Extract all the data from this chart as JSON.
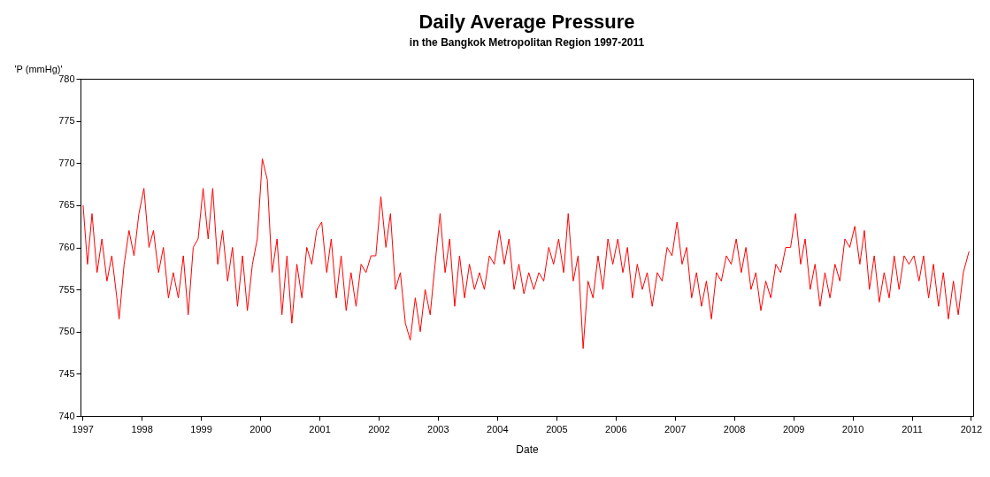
{
  "chart_data": {
    "type": "line",
    "title": "Daily Average Pressure",
    "subtitle": "in the Bangkok Metropolitan Region 1997-2011",
    "xlabel": "Date",
    "ylabel": "'P (mmHg)'",
    "xlim": [
      "1996-12-20",
      "2012-01-15"
    ],
    "xticks": [
      "1997",
      "1998",
      "1999",
      "2000",
      "2001",
      "2002",
      "2003",
      "2004",
      "2005",
      "2006",
      "2007",
      "2008",
      "2009",
      "2010",
      "2011",
      "2012"
    ],
    "ylim": [
      740,
      780
    ],
    "yticks": [
      740,
      745,
      750,
      755,
      760,
      765,
      770,
      775,
      780
    ],
    "grid": false,
    "x": [
      "1997-01-05",
      "1997-02-01",
      "1997-03-01",
      "1997-04-01",
      "1997-05-01",
      "1997-06-01",
      "1997-07-01",
      "1997-08-01",
      "1997-08-15",
      "1997-09-15",
      "1997-10-15",
      "1997-11-15",
      "1997-12-15",
      "1998-01-15",
      "1998-02-15",
      "1998-03-15",
      "1998-04-15",
      "1998-05-15",
      "1998-06-15",
      "1998-07-15",
      "1998-08-15",
      "1998-09-15",
      "1998-10-15",
      "1998-11-15",
      "1998-12-15",
      "1999-01-15",
      "1999-02-15",
      "1999-03-15",
      "1999-04-15",
      "1999-05-15",
      "1999-06-15",
      "1999-07-15",
      "1999-08-15",
      "1999-09-15",
      "1999-10-15",
      "1999-11-15",
      "1999-12-15",
      "2000-01-15",
      "2000-02-15",
      "2000-03-15",
      "2000-04-15",
      "2000-05-15",
      "2000-06-15",
      "2000-07-15",
      "2000-08-15",
      "2000-09-15",
      "2000-10-15",
      "2000-11-15",
      "2000-12-15",
      "2001-01-15",
      "2001-02-15",
      "2001-03-15",
      "2001-04-15",
      "2001-05-15",
      "2001-06-15",
      "2001-07-15",
      "2001-08-15",
      "2001-09-15",
      "2001-10-15",
      "2001-11-15",
      "2001-12-15",
      "2002-01-15",
      "2002-02-15",
      "2002-03-15",
      "2002-04-15",
      "2002-05-15",
      "2002-06-15",
      "2002-07-15",
      "2002-08-15",
      "2002-09-15",
      "2002-10-15",
      "2002-11-15",
      "2002-12-15",
      "2003-01-15",
      "2003-02-15",
      "2003-03-15",
      "2003-04-15",
      "2003-05-15",
      "2003-06-15",
      "2003-07-15",
      "2003-08-15",
      "2003-09-15",
      "2003-10-15",
      "2003-11-15",
      "2003-12-15",
      "2004-01-15",
      "2004-02-15",
      "2004-03-15",
      "2004-04-15",
      "2004-05-15",
      "2004-06-15",
      "2004-07-15",
      "2004-08-15",
      "2004-09-15",
      "2004-10-15",
      "2004-11-15",
      "2004-12-15",
      "2005-01-15",
      "2005-02-15",
      "2005-03-15",
      "2005-04-15",
      "2005-05-15",
      "2005-06-15",
      "2005-07-15",
      "2005-08-15",
      "2005-09-15",
      "2005-10-15",
      "2005-11-15",
      "2005-12-15",
      "2006-01-15",
      "2006-02-15",
      "2006-03-15",
      "2006-04-15",
      "2006-05-15",
      "2006-06-15",
      "2006-07-15",
      "2006-08-15",
      "2006-09-15",
      "2006-10-15",
      "2006-11-15",
      "2006-12-15",
      "2007-01-15",
      "2007-02-15",
      "2007-03-15",
      "2007-04-15",
      "2007-05-15",
      "2007-06-15",
      "2007-07-15",
      "2007-08-15",
      "2007-09-15",
      "2007-10-15",
      "2007-11-15",
      "2007-12-15",
      "2008-01-15",
      "2008-02-15",
      "2008-03-15",
      "2008-04-15",
      "2008-05-15",
      "2008-06-15",
      "2008-07-15",
      "2008-08-15",
      "2008-09-15",
      "2008-10-15",
      "2008-11-15",
      "2008-12-15",
      "2009-01-15",
      "2009-02-15",
      "2009-03-15",
      "2009-04-15",
      "2009-05-15",
      "2009-06-15",
      "2009-07-15",
      "2009-08-15",
      "2009-09-15",
      "2009-10-15",
      "2009-11-15",
      "2009-12-15",
      "2010-01-15",
      "2010-02-15",
      "2010-03-15",
      "2010-04-15",
      "2010-05-15",
      "2010-06-15",
      "2010-07-15",
      "2010-08-15",
      "2010-09-15",
      "2010-10-15",
      "2010-11-15",
      "2010-12-15",
      "2011-01-15",
      "2011-02-15",
      "2011-03-15",
      "2011-04-15",
      "2011-05-15",
      "2011-06-15",
      "2011-07-15",
      "2011-08-15",
      "2011-09-15",
      "2011-10-15",
      "2011-11-15",
      "2011-12-20"
    ],
    "series": [
      {
        "color": "#ff0000",
        "values": [
          765,
          758,
          764,
          757,
          761,
          756,
          759,
          754,
          751.5,
          758,
          762,
          759,
          764,
          767,
          760,
          762,
          757,
          760,
          754,
          757,
          754,
          759,
          752,
          760,
          761,
          767,
          761,
          767,
          758,
          762,
          756,
          760,
          753,
          759,
          752.5,
          758,
          761,
          770.5,
          768,
          757,
          761,
          752,
          759,
          751,
          758,
          754,
          760,
          758,
          762,
          763,
          757,
          761,
          754,
          759,
          752.5,
          757,
          753,
          758,
          757,
          759,
          759,
          766,
          760,
          764,
          755,
          757,
          751,
          749,
          754,
          750,
          755,
          752,
          758,
          764,
          757,
          761,
          753,
          759,
          754,
          758,
          755,
          757,
          755,
          759,
          758,
          762,
          758,
          761,
          755,
          758,
          754.5,
          757,
          755,
          757,
          756,
          760,
          758,
          761,
          757,
          764,
          756,
          759,
          748,
          756,
          754,
          759,
          755,
          761,
          758,
          761,
          757,
          760,
          754,
          758,
          755,
          757,
          753,
          757,
          756,
          760,
          759,
          763,
          758,
          760,
          754,
          757,
          753,
          756,
          751.5,
          757,
          756,
          759,
          758,
          761,
          757,
          760,
          755,
          757,
          752.5,
          756,
          754,
          758,
          757,
          760,
          760,
          764,
          758,
          761,
          755,
          758,
          753,
          757,
          754,
          758,
          756,
          761,
          760,
          762.5,
          758,
          762,
          755,
          759,
          753.5,
          757,
          754,
          759,
          755,
          759,
          758,
          759,
          756,
          759,
          754,
          758,
          753,
          757,
          751.5,
          756,
          752,
          757,
          759.5
        ]
      }
    ]
  }
}
